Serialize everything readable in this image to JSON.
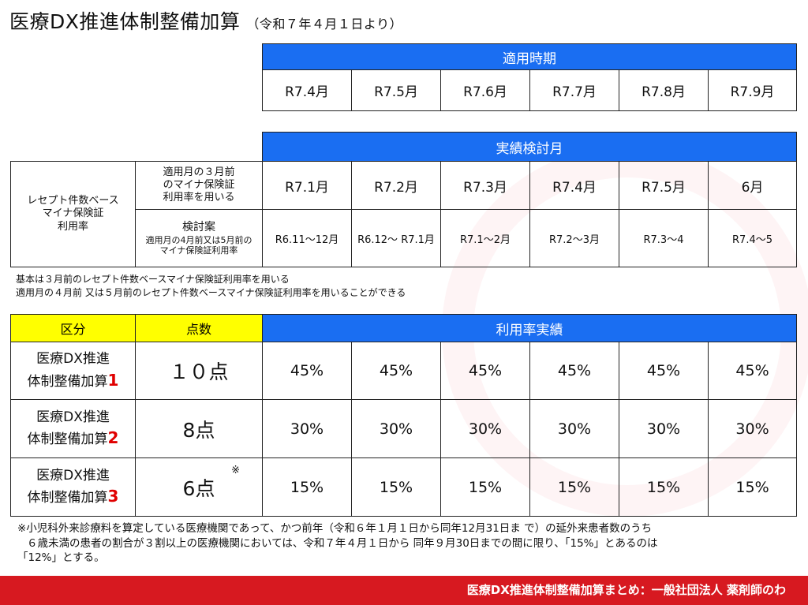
{
  "title": "医療DX推進体制整備加算",
  "subtitle": "（令和７年４月１日より）",
  "apply_period": {
    "header": "適用時期",
    "months": [
      "R7.4月",
      "R7.5月",
      "R7.6月",
      "R7.7月",
      "R7.8月",
      "R7.9月"
    ]
  },
  "review": {
    "header": "実績検討月",
    "left_label_lines": [
      "レセプト件数ベース",
      "マイナ保険証",
      "利用率"
    ],
    "row1_label_lines": [
      "適用月の３月前",
      "のマイナ保険証",
      "利用率を用いる"
    ],
    "row1_values": [
      "R7.1月",
      "R7.2月",
      "R7.3月",
      "R7.4月",
      "R7.5月",
      "6月"
    ],
    "row2_label_title": "検討案",
    "row2_label_lines": [
      "適用月の4月前又は5月前の",
      "マイナ保険証利用率"
    ],
    "row2_values": [
      "R6.11〜12月",
      "R6.12〜 R7.1月",
      "R7.1〜2月",
      "R7.2〜3月",
      "R7.3〜4",
      "R7.4〜5"
    ]
  },
  "notes": [
    "基本は３月前のレセプト件数ベースマイナ保険証利用率を用いる",
    "適用月の４月前 又は５月前のレセプト件数ベースマイナ保険証利用率を用いることができる"
  ],
  "rates": {
    "col_kubun": "区分",
    "col_points": "点数",
    "col_rates": "利用率実績",
    "rows": [
      {
        "name1": "医療DX推進",
        "name2": "体制整備加算",
        "num": "1",
        "points": "１０点",
        "mark": "",
        "values": [
          "45%",
          "45%",
          "45%",
          "45%",
          "45%",
          "45%"
        ]
      },
      {
        "name1": "医療DX推進",
        "name2": "体制整備加算",
        "num": "2",
        "points": "8点",
        "mark": "",
        "values": [
          "30%",
          "30%",
          "30%",
          "30%",
          "30%",
          "30%"
        ]
      },
      {
        "name1": "医療DX推進",
        "name2": "体制整備加算",
        "num": "3",
        "points": "6点",
        "mark": "※",
        "values": [
          "15%",
          "15%",
          "15%",
          "15%",
          "15%",
          "15%"
        ]
      }
    ]
  },
  "footnote_lines": [
    "※小児科外来診療料を算定している医療機関であって、かつ前年（令和６年１月１日から同年12月31日ま で）の延外来患者数のうち",
    "６歳未満の患者の割合が３割以上の医療機関においては、令和７年４月１日から 同年９月30日までの間に限り、「15%」とあるのは",
    "「12%」とする。"
  ],
  "footer": "医療DX推進体制整備加算まとめ：一般社団法人 薬剤師のわ",
  "colors": {
    "header_blue": "#1a6ef2",
    "header_yellow": "#ffff00",
    "footer_red": "#d71920",
    "accent_red": "#e00000"
  }
}
